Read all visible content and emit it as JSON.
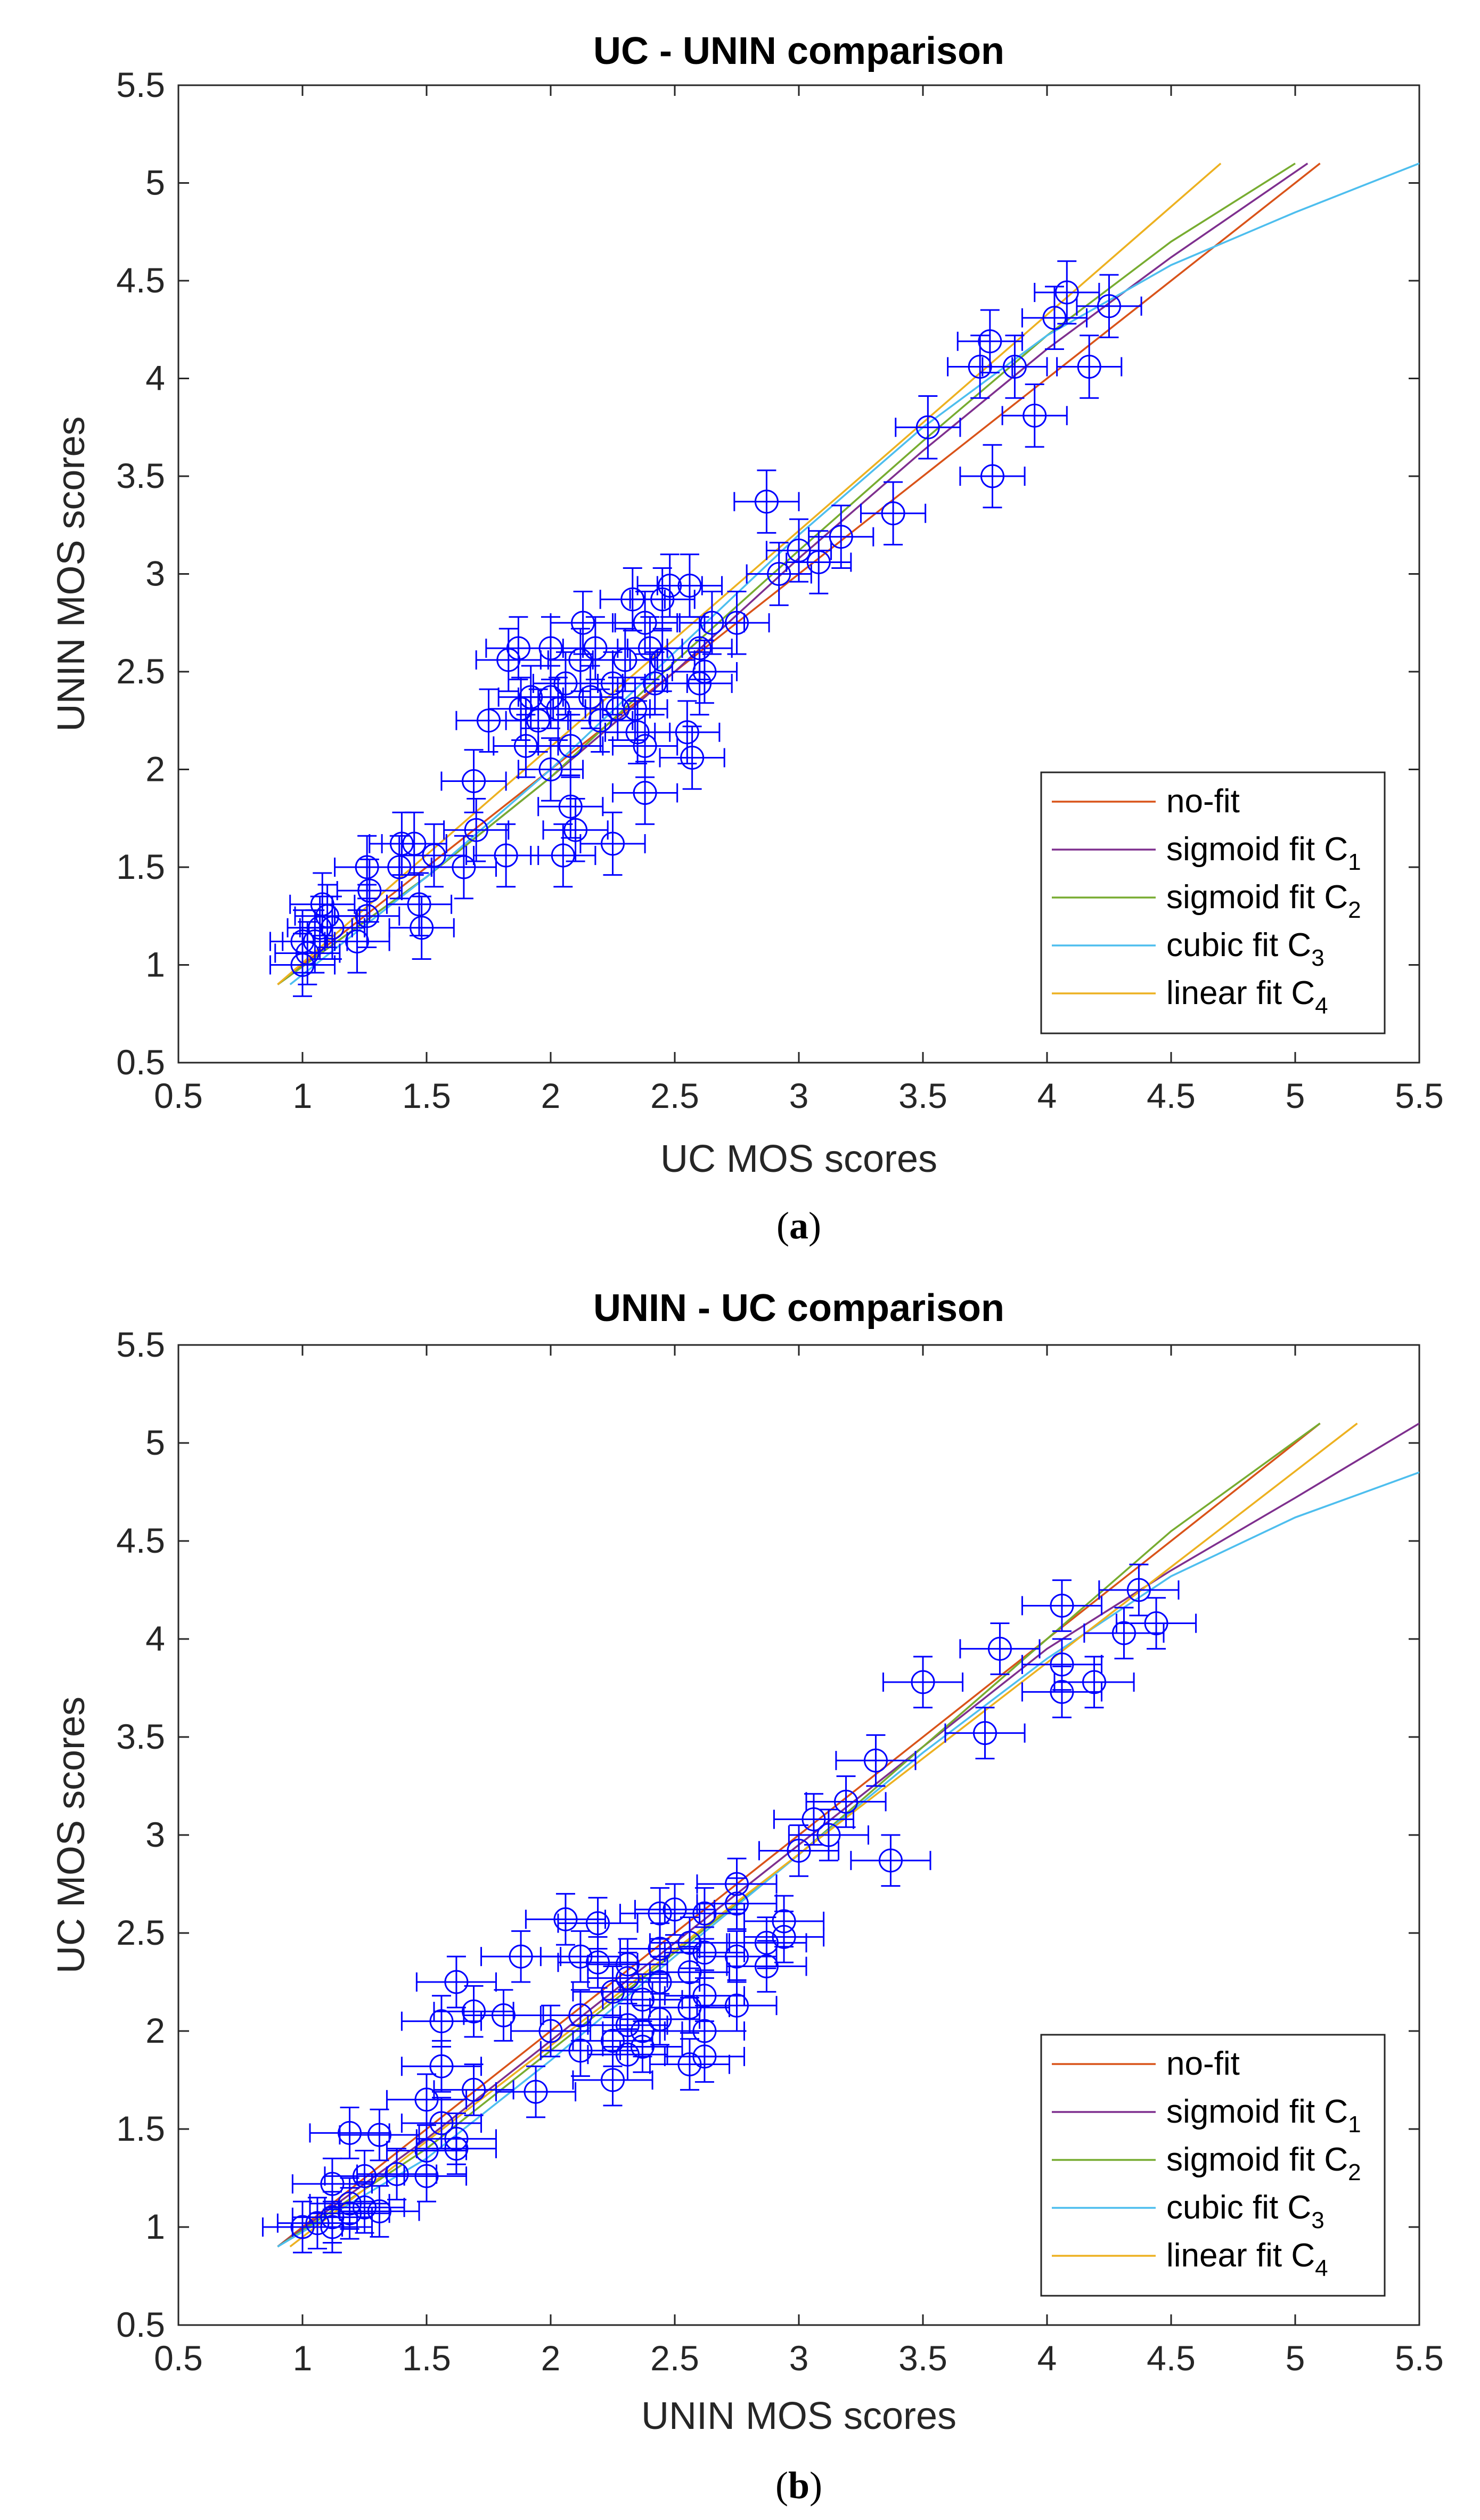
{
  "chart_data": [
    {
      "type": "scatter",
      "title": "UC - UNIN comparison",
      "xlabel": "UC MOS scores",
      "ylabel": "UNIN MOS scores",
      "caption": {
        "open": "(",
        "letter": "a",
        "close": ")"
      },
      "xlim": [
        0.5,
        5.5
      ],
      "ylim": [
        0.5,
        5.5
      ],
      "xticks": [
        "0.5",
        "1",
        "1.5",
        "2",
        "2.5",
        "3",
        "3.5",
        "4",
        "4.5",
        "5",
        "5.5"
      ],
      "yticks": [
        "0.5",
        "1",
        "1.5",
        "2",
        "2.5",
        "3",
        "3.5",
        "4",
        "4.5",
        "5",
        "5.5"
      ],
      "legend_position": "bottom-right",
      "marker_color": "#0000ff",
      "points": [
        [
          1.0,
          1.0
        ],
        [
          1.02,
          1.06
        ],
        [
          1.0,
          1.12
        ],
        [
          1.05,
          1.12
        ],
        [
          1.07,
          1.19
        ],
        [
          1.1,
          1.25
        ],
        [
          1.08,
          1.31
        ],
        [
          1.12,
          1.19
        ],
        [
          1.22,
          1.12
        ],
        [
          1.26,
          1.25
        ],
        [
          1.27,
          1.38
        ],
        [
          1.26,
          1.5
        ],
        [
          1.39,
          1.5
        ],
        [
          1.4,
          1.62
        ],
        [
          1.45,
          1.62
        ],
        [
          1.47,
          1.31
        ],
        [
          1.48,
          1.19
        ],
        [
          1.53,
          1.56
        ],
        [
          1.65,
          1.5
        ],
        [
          1.69,
          1.94
        ],
        [
          1.7,
          1.69
        ],
        [
          1.75,
          2.25
        ],
        [
          1.83,
          2.56
        ],
        [
          1.87,
          2.62
        ],
        [
          1.82,
          1.56
        ],
        [
          1.88,
          2.31
        ],
        [
          1.9,
          2.12
        ],
        [
          1.92,
          2.37
        ],
        [
          1.95,
          2.25
        ],
        [
          2.0,
          2.62
        ],
        [
          2.0,
          2.37
        ],
        [
          2.0,
          2.0
        ],
        [
          2.03,
          2.31
        ],
        [
          2.05,
          1.56
        ],
        [
          2.06,
          2.44
        ],
        [
          2.08,
          2.12
        ],
        [
          2.08,
          1.81
        ],
        [
          2.1,
          1.69
        ],
        [
          2.12,
          2.56
        ],
        [
          2.13,
          2.75
        ],
        [
          2.16,
          2.37
        ],
        [
          2.18,
          2.62
        ],
        [
          2.2,
          2.25
        ],
        [
          2.25,
          1.62
        ],
        [
          2.25,
          2.44
        ],
        [
          2.27,
          2.31
        ],
        [
          2.3,
          2.56
        ],
        [
          2.33,
          2.87
        ],
        [
          2.34,
          2.31
        ],
        [
          2.35,
          2.19
        ],
        [
          2.38,
          2.75
        ],
        [
          2.38,
          2.12
        ],
        [
          2.38,
          1.88
        ],
        [
          2.4,
          2.62
        ],
        [
          2.42,
          2.44
        ],
        [
          2.45,
          2.56
        ],
        [
          2.45,
          2.87
        ],
        [
          2.48,
          2.94
        ],
        [
          2.55,
          2.19
        ],
        [
          2.56,
          2.94
        ],
        [
          2.57,
          2.06
        ],
        [
          2.6,
          2.62
        ],
        [
          2.6,
          2.44
        ],
        [
          2.62,
          2.5
        ],
        [
          2.65,
          2.75
        ],
        [
          2.75,
          2.75
        ],
        [
          2.87,
          3.37
        ],
        [
          2.92,
          3.0
        ],
        [
          3.0,
          3.12
        ],
        [
          3.08,
          3.06
        ],
        [
          3.17,
          3.19
        ],
        [
          3.38,
          3.31
        ],
        [
          3.52,
          3.75
        ],
        [
          3.73,
          4.06
        ],
        [
          3.77,
          4.19
        ],
        [
          3.78,
          3.5
        ],
        [
          3.87,
          4.06
        ],
        [
          3.95,
          3.81
        ],
        [
          4.03,
          4.31
        ],
        [
          4.08,
          4.44
        ],
        [
          4.17,
          4.06
        ],
        [
          4.25,
          4.37
        ]
      ],
      "x_err": 0.13,
      "y_err": 0.16,
      "series": [
        {
          "name": "no-fit",
          "sub": "",
          "color": "#d95319",
          "x": [
            0.9,
            5.1
          ],
          "y": [
            0.9,
            5.1
          ]
        },
        {
          "name": "sigmoid fit C",
          "sub": "1",
          "color": "#7e2f8e",
          "x": [
            0.9,
            1.5,
            2.0,
            2.5,
            3.0,
            3.5,
            4.0,
            4.5,
            5.05
          ],
          "y": [
            0.9,
            1.45,
            1.96,
            2.5,
            3.08,
            3.63,
            4.15,
            4.62,
            5.1
          ]
        },
        {
          "name": "sigmoid fit C",
          "sub": "2",
          "color": "#77ac30",
          "x": [
            0.9,
            1.5,
            2.0,
            2.5,
            3.0,
            3.5,
            4.0,
            4.5,
            5.0
          ],
          "y": [
            0.9,
            1.45,
            1.96,
            2.55,
            3.12,
            3.68,
            4.22,
            4.7,
            5.1
          ]
        },
        {
          "name": "cubic fit C",
          "sub": "3",
          "color": "#4dbeee",
          "x": [
            0.95,
            1.5,
            2.0,
            2.5,
            3.0,
            3.5,
            4.0,
            4.5,
            5.0,
            5.5
          ],
          "y": [
            0.9,
            1.45,
            2.0,
            2.6,
            3.2,
            3.75,
            4.22,
            4.58,
            4.85,
            5.1
          ]
        },
        {
          "name": "linear fit C",
          "sub": "4",
          "color": "#edb120",
          "x": [
            0.9,
            4.7
          ],
          "y": [
            0.9,
            5.1
          ]
        }
      ]
    },
    {
      "type": "scatter",
      "title": "UNIN - UC comparison",
      "xlabel": "UNIN MOS scores",
      "ylabel": "UC MOS scores",
      "caption": {
        "open": "(",
        "letter": "b",
        "close": ")"
      },
      "xlim": [
        0.5,
        5.5
      ],
      "ylim": [
        0.5,
        5.5
      ],
      "xticks": [
        "0.5",
        "1",
        "1.5",
        "2",
        "2.5",
        "3",
        "3.5",
        "4",
        "4.5",
        "5",
        "5.5"
      ],
      "yticks": [
        "0.5",
        "1",
        "1.5",
        "2",
        "2.5",
        "3",
        "3.5",
        "4",
        "4.5",
        "5",
        "5.5"
      ],
      "legend_position": "bottom-right",
      "marker_color": "#0000ff",
      "points": [
        [
          1.0,
          1.0
        ],
        [
          1.06,
          1.02
        ],
        [
          1.12,
          1.0
        ],
        [
          1.12,
          1.05
        ],
        [
          1.19,
          1.07
        ],
        [
          1.25,
          1.1
        ],
        [
          1.31,
          1.08
        ],
        [
          1.19,
          1.12
        ],
        [
          1.12,
          1.22
        ],
        [
          1.25,
          1.26
        ],
        [
          1.38,
          1.27
        ],
        [
          1.5,
          1.26
        ],
        [
          1.5,
          1.39
        ],
        [
          1.62,
          1.4
        ],
        [
          1.62,
          1.45
        ],
        [
          1.31,
          1.47
        ],
        [
          1.19,
          1.48
        ],
        [
          1.56,
          1.53
        ],
        [
          1.5,
          1.65
        ],
        [
          1.94,
          1.69
        ],
        [
          1.69,
          1.7
        ],
        [
          2.25,
          1.75
        ],
        [
          2.56,
          1.83
        ],
        [
          2.62,
          1.87
        ],
        [
          1.56,
          1.82
        ],
        [
          2.31,
          1.88
        ],
        [
          2.12,
          1.9
        ],
        [
          2.37,
          1.92
        ],
        [
          2.25,
          1.95
        ],
        [
          2.62,
          2.0
        ],
        [
          2.37,
          2.0
        ],
        [
          2.0,
          2.0
        ],
        [
          2.31,
          2.03
        ],
        [
          1.56,
          2.05
        ],
        [
          2.44,
          2.06
        ],
        [
          2.12,
          2.08
        ],
        [
          1.81,
          2.08
        ],
        [
          1.69,
          2.1
        ],
        [
          2.56,
          2.12
        ],
        [
          2.75,
          2.13
        ],
        [
          2.37,
          2.16
        ],
        [
          2.62,
          2.18
        ],
        [
          2.25,
          2.2
        ],
        [
          1.62,
          2.25
        ],
        [
          2.44,
          2.25
        ],
        [
          2.31,
          2.27
        ],
        [
          2.56,
          2.3
        ],
        [
          2.87,
          2.33
        ],
        [
          2.31,
          2.34
        ],
        [
          2.19,
          2.35
        ],
        [
          2.75,
          2.38
        ],
        [
          2.12,
          2.38
        ],
        [
          1.88,
          2.38
        ],
        [
          2.62,
          2.4
        ],
        [
          2.44,
          2.42
        ],
        [
          2.56,
          2.45
        ],
        [
          2.87,
          2.45
        ],
        [
          2.94,
          2.48
        ],
        [
          2.19,
          2.55
        ],
        [
          2.94,
          2.56
        ],
        [
          2.06,
          2.57
        ],
        [
          2.62,
          2.6
        ],
        [
          2.44,
          2.6
        ],
        [
          2.5,
          2.62
        ],
        [
          2.75,
          2.65
        ],
        [
          2.75,
          2.75
        ],
        [
          3.37,
          2.87
        ],
        [
          3.0,
          2.92
        ],
        [
          3.12,
          3.0
        ],
        [
          3.06,
          3.08
        ],
        [
          3.19,
          3.17
        ],
        [
          3.31,
          3.38
        ],
        [
          3.5,
          3.78
        ],
        [
          3.75,
          3.52
        ],
        [
          3.81,
          3.95
        ],
        [
          4.06,
          3.73
        ],
        [
          4.06,
          3.87
        ],
        [
          4.19,
          3.78
        ],
        [
          4.06,
          4.17
        ],
        [
          4.31,
          4.03
        ],
        [
          4.37,
          4.25
        ],
        [
          4.44,
          4.08
        ]
      ],
      "x_err": 0.16,
      "y_err": 0.13,
      "series": [
        {
          "name": "no-fit",
          "sub": "",
          "color": "#d95319",
          "x": [
            0.9,
            5.1
          ],
          "y": [
            0.9,
            5.1
          ]
        },
        {
          "name": "sigmoid fit C",
          "sub": "1",
          "color": "#7e2f8e",
          "x": [
            0.9,
            1.5,
            2.0,
            2.5,
            3.0,
            3.5,
            4.0,
            4.5,
            5.0,
            5.5
          ],
          "y": [
            0.9,
            1.45,
            1.95,
            2.45,
            2.95,
            3.45,
            3.95,
            4.35,
            4.72,
            5.1
          ]
        },
        {
          "name": "sigmoid fit C",
          "sub": "2",
          "color": "#77ac30",
          "x": [
            0.9,
            1.5,
            2.0,
            2.5,
            3.0,
            3.5,
            4.0,
            4.5,
            5.1
          ],
          "y": [
            0.9,
            1.4,
            1.9,
            2.4,
            2.9,
            3.45,
            4.0,
            4.55,
            5.1
          ]
        },
        {
          "name": "cubic fit C",
          "sub": "3",
          "color": "#4dbeee",
          "x": [
            0.9,
            1.5,
            2.0,
            2.5,
            3.0,
            3.5,
            4.0,
            4.5,
            5.0,
            5.5
          ],
          "y": [
            0.9,
            1.35,
            1.85,
            2.38,
            2.9,
            3.42,
            3.9,
            4.32,
            4.62,
            4.85
          ]
        },
        {
          "name": "linear fit C",
          "sub": "4",
          "color": "#edb120",
          "x": [
            0.95,
            5.25
          ],
          "y": [
            0.9,
            5.1
          ]
        }
      ]
    }
  ]
}
